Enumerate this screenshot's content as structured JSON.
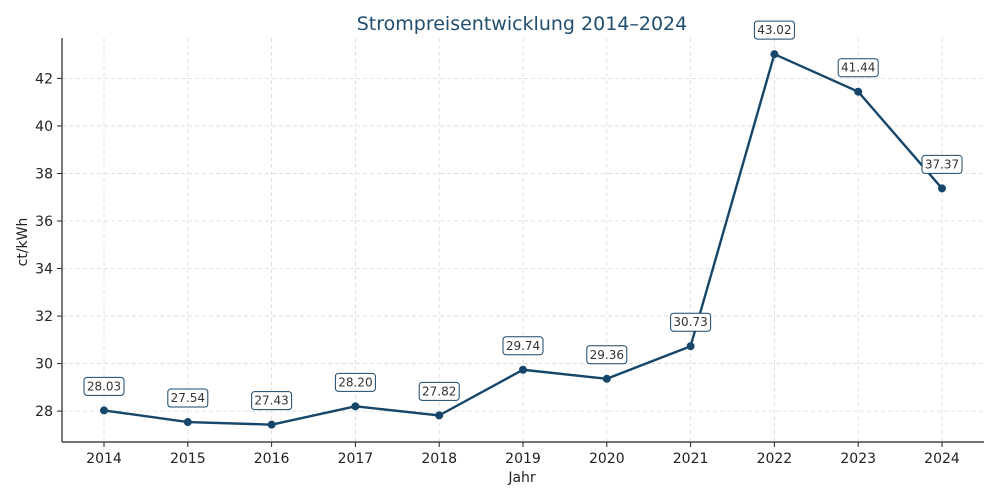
{
  "chart_data": {
    "type": "line",
    "title": "Strompreisentwicklung 2014–2024",
    "xlabel": "Jahr",
    "ylabel": "ct/kWh",
    "x": [
      "2014",
      "2015",
      "2016",
      "2017",
      "2018",
      "2019",
      "2020",
      "2021",
      "2022",
      "2023",
      "2024"
    ],
    "series": [
      {
        "values": [
          28.03,
          27.54,
          27.43,
          28.2,
          27.82,
          29.74,
          29.36,
          30.73,
          43.02,
          41.44,
          37.37
        ],
        "labels": [
          "28.03",
          "27.54",
          "27.43",
          "28.20",
          "27.82",
          "29.74",
          "29.36",
          "30.73",
          "43.02",
          "41.44",
          "37.37"
        ],
        "color": "#16466a"
      }
    ],
    "yticks": [
      28,
      30,
      32,
      34,
      36,
      38,
      40,
      42
    ],
    "yticklabels": [
      "28",
      "30",
      "32",
      "34",
      "36",
      "38",
      "40",
      "42"
    ],
    "ylim": [
      26.7,
      43.7
    ],
    "grid": true,
    "legend": "none"
  }
}
